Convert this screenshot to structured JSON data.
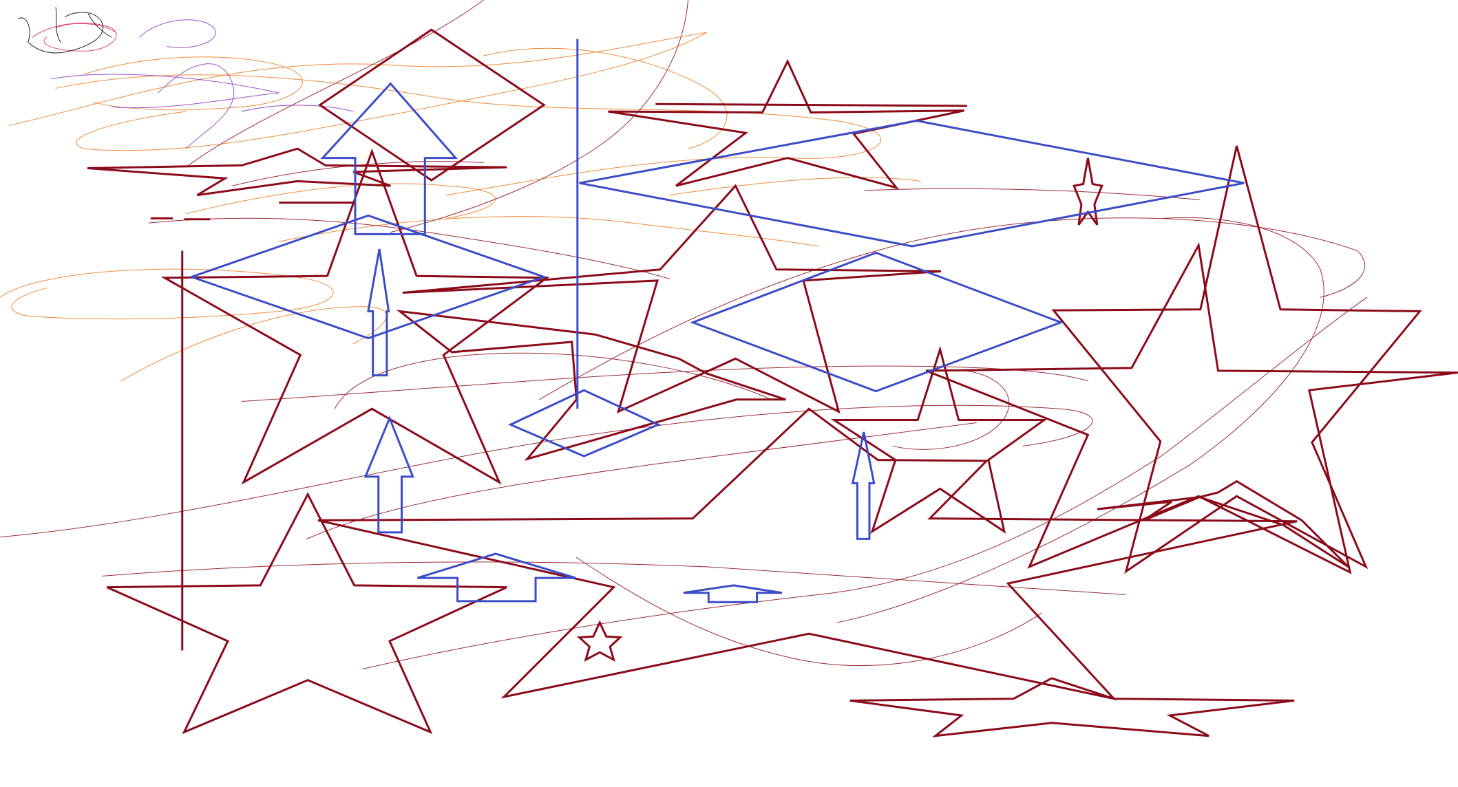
{
  "canvas": {
    "background": "#ffffff"
  },
  "palette": {
    "star": "#8b0a1a",
    "scribble_dark": "#9a2a35",
    "shape_blue": "#3b4cc8",
    "scribble_orange": "#f08a3a",
    "scribble_purple": "#9a4fc8",
    "scribble_pink": "#e0406a",
    "scribble_black": "#222222"
  },
  "shapes": {
    "star_outlines": 14,
    "arrow_outlines": 7,
    "diamond_outlines": 4,
    "freehand_scribbles": 30
  }
}
